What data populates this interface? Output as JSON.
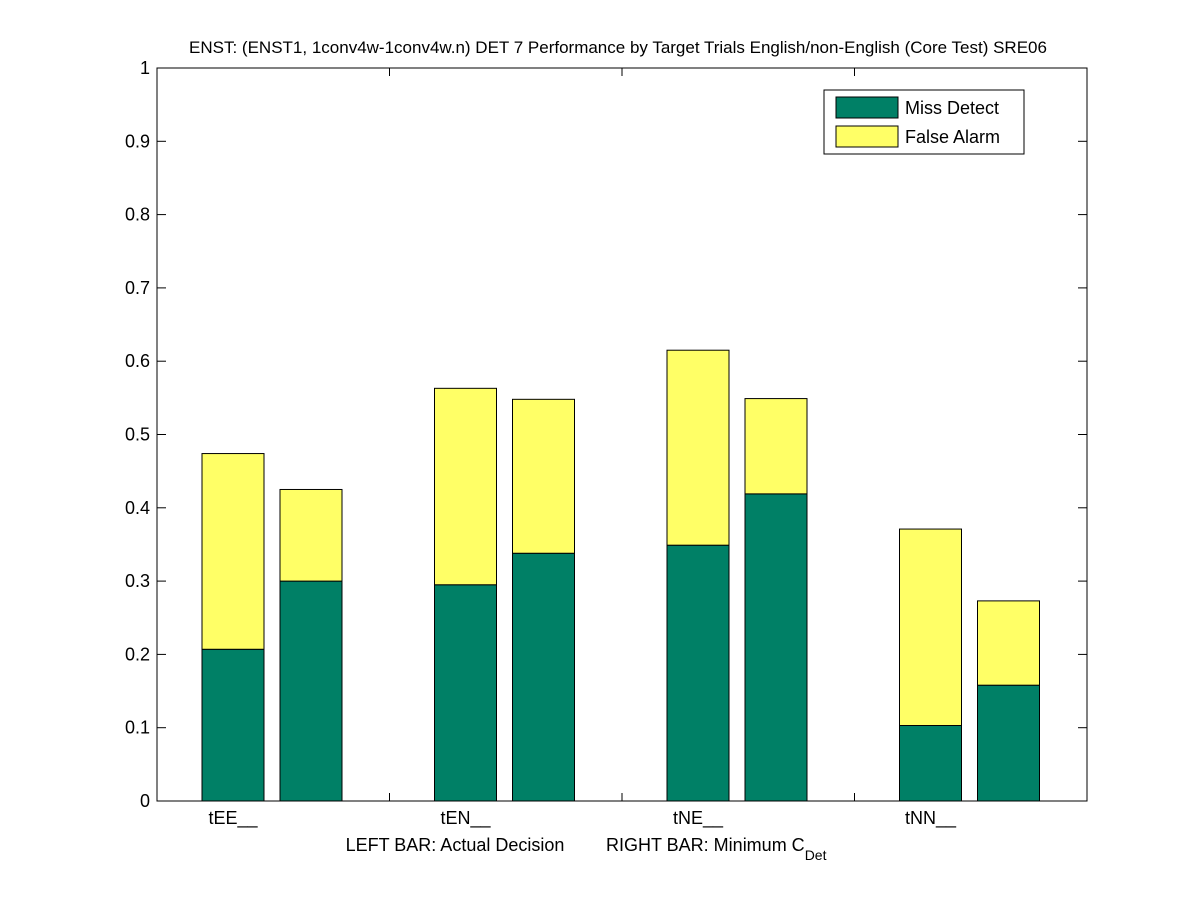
{
  "chart_data": {
    "type": "bar",
    "stacked": true,
    "title": "ENST: (ENST1, 1conv4w-1conv4w.n) DET 7 Performance by Target Trials English/non-English (Core Test) SRE06",
    "xlabel": {
      "left": "LEFT BAR: Actual Decision",
      "right_prefix": "RIGHT BAR: Minimum C",
      "right_subscript": "Det"
    },
    "ylim": [
      0,
      1
    ],
    "yticks": [
      "0",
      "0.1",
      "0.2",
      "0.3",
      "0.4",
      "0.5",
      "0.6",
      "0.7",
      "0.8",
      "0.9",
      "1"
    ],
    "categories": [
      "tEE__",
      "tEN__",
      "tNE__",
      "tNN__"
    ],
    "bars_per_category": [
      "Actual Decision",
      "Minimum CDet"
    ],
    "series": [
      {
        "name": "Miss Detect",
        "color": "#008066",
        "actual": [
          0.207,
          0.295,
          0.349,
          0.103
        ],
        "minimum": [
          0.3,
          0.338,
          0.419,
          0.158
        ]
      },
      {
        "name": "False Alarm",
        "color": "#ffff66",
        "actual": [
          0.267,
          0.268,
          0.266,
          0.268
        ],
        "minimum": [
          0.125,
          0.21,
          0.13,
          0.115
        ]
      }
    ],
    "grid": false,
    "legend_position": "top-right"
  }
}
